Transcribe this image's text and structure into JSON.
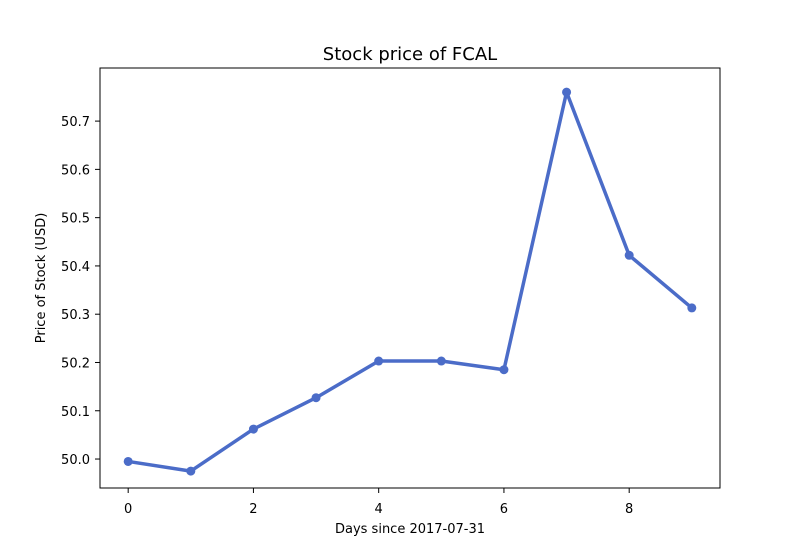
{
  "chart_data": {
    "type": "line",
    "title": "Stock price of FCAL",
    "xlabel": "Days since 2017-07-31",
    "ylabel": "Price of Stock (USD)",
    "x": [
      0,
      1,
      2,
      3,
      4,
      5,
      6,
      7,
      8,
      9
    ],
    "series": [
      {
        "values": [
          49.995,
          49.975,
          50.062,
          50.127,
          50.203,
          50.203,
          50.185,
          50.76,
          50.422,
          50.313
        ],
        "color": "#4b6cc8"
      }
    ],
    "xlim": [
      -0.45,
      9.45
    ],
    "ylim": [
      49.94,
      50.81
    ],
    "xticks": [
      0,
      2,
      4,
      6,
      8
    ],
    "xtick_labels": [
      "0",
      "2",
      "4",
      "6",
      "8"
    ],
    "yticks": [
      50.0,
      50.1,
      50.2,
      50.3,
      50.4,
      50.5,
      50.6,
      50.7
    ],
    "ytick_labels": [
      "50.0",
      "50.1",
      "50.2",
      "50.3",
      "50.4",
      "50.5",
      "50.6",
      "50.7"
    ],
    "grid": false,
    "legend": "none"
  }
}
